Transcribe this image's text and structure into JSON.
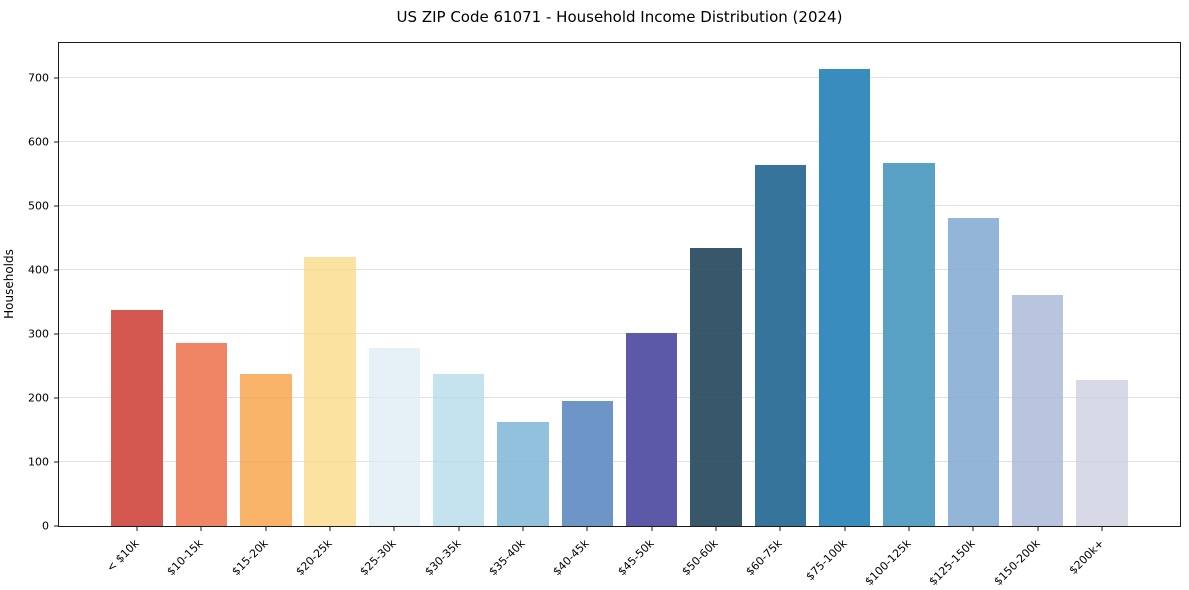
{
  "chart_data": {
    "type": "bar",
    "title": "US ZIP Code 61071 - Household Income Distribution (2024)",
    "xlabel": "",
    "ylabel": "Households",
    "categories": [
      "< $10k",
      "$10-15k",
      "$15-20k",
      "$20-25k",
      "$25-30k",
      "$30-35k",
      "$35-40k",
      "$40-45k",
      "$45-50k",
      "$50-60k",
      "$60-75k",
      "$75-100k",
      "$100-125k",
      "$125-150k",
      "$150-200k",
      "$200k+"
    ],
    "values": [
      337,
      286,
      237,
      420,
      278,
      238,
      162,
      196,
      302,
      435,
      564,
      714,
      567,
      481,
      361,
      229
    ],
    "bar_colors": [
      "#d45850",
      "#f08566",
      "#f9b469",
      "#fce2a0",
      "#e5f1f6",
      "#c4e3ef",
      "#92c1de",
      "#6e95c8",
      "#5b59a8",
      "#38576b",
      "#37749c",
      "#388cbe",
      "#5aa1c6",
      "#92b5d8",
      "#b9c5de",
      "#d8d9e6"
    ],
    "yticks": [
      0,
      100,
      200,
      300,
      400,
      500,
      600,
      700
    ],
    "ylim": [
      0,
      755
    ],
    "grid": true,
    "legend": "none",
    "gridline_color": "#e8e8e8",
    "spine_color": "#1a1a1a"
  }
}
